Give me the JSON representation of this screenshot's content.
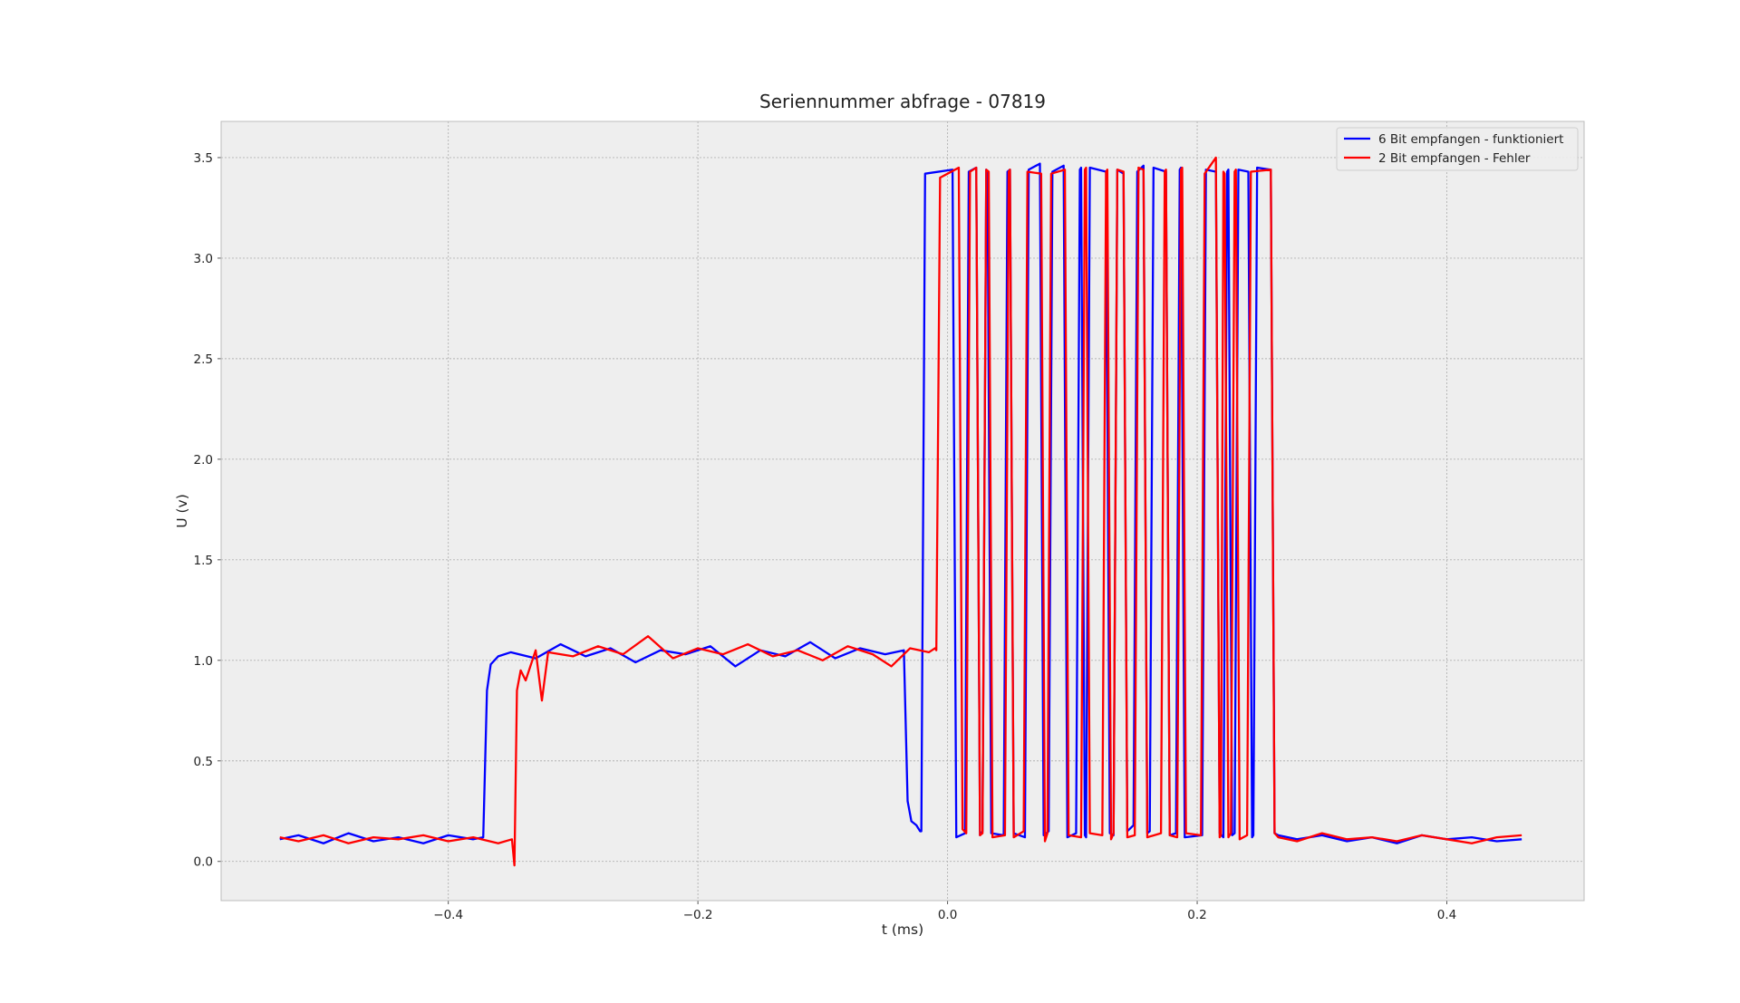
{
  "chart_data": {
    "type": "line",
    "title": "Seriennummer abfrage - 07819",
    "xlabel": "t (ms)",
    "ylabel": "U (v)",
    "xlim": [
      -0.582,
      0.51
    ],
    "ylim": [
      -0.195,
      3.68
    ],
    "xticks": [
      {
        "value": -0.4,
        "label": "−0.4"
      },
      {
        "value": -0.2,
        "label": "−0.2"
      },
      {
        "value": 0,
        "label": "0.0"
      },
      0.2,
      0.4
    ],
    "yticks": [
      {
        "value": 0,
        "label": "0.0"
      },
      0.5,
      {
        "value": 1,
        "label": "1.0"
      },
      1.5,
      {
        "value": 2,
        "label": "2.0"
      },
      2.5,
      {
        "value": 3,
        "label": "3.0"
      },
      3.5
    ],
    "grid": true,
    "legend": "upper right",
    "series": [
      {
        "name": "6 Bit empfangen - funktioniert",
        "color": "#0000ff",
        "x": [
          -0.535,
          -0.52,
          -0.5,
          -0.48,
          -0.46,
          -0.44,
          -0.42,
          -0.4,
          -0.38,
          -0.372,
          -0.369,
          -0.366,
          -0.36,
          -0.35,
          -0.33,
          -0.31,
          -0.29,
          -0.27,
          -0.25,
          -0.23,
          -0.21,
          -0.19,
          -0.17,
          -0.15,
          -0.13,
          -0.11,
          -0.09,
          -0.07,
          -0.05,
          -0.035,
          -0.032,
          -0.029,
          -0.025,
          -0.022,
          -0.021,
          -0.018,
          0.004,
          0.007,
          0.014,
          0.017,
          0.023,
          0.026,
          0.028,
          0.031,
          0.032,
          0.035,
          0.045,
          0.048,
          0.05,
          0.053,
          0.062,
          0.065,
          0.074,
          0.077,
          0.081,
          0.084,
          0.093,
          0.096,
          0.103,
          0.106,
          0.107,
          0.11,
          0.111,
          0.114,
          0.127,
          0.13,
          0.133,
          0.136,
          0.141,
          0.144,
          0.149,
          0.152,
          0.157,
          0.16,
          0.162,
          0.165,
          0.175,
          0.178,
          0.183,
          0.186,
          0.187,
          0.19,
          0.204,
          0.207,
          0.215,
          0.218,
          0.221,
          0.224,
          0.225,
          0.228,
          0.23,
          0.233,
          0.241,
          0.244,
          0.245,
          0.248,
          0.259,
          0.262,
          0.265,
          0.28,
          0.3,
          0.32,
          0.34,
          0.36,
          0.38,
          0.4,
          0.42,
          0.44,
          0.46
        ],
        "values": [
          0.11,
          0.13,
          0.09,
          0.14,
          0.1,
          0.12,
          0.09,
          0.13,
          0.11,
          0.12,
          0.85,
          0.98,
          1.02,
          1.04,
          1.01,
          1.08,
          1.02,
          1.06,
          0.99,
          1.05,
          1.03,
          1.07,
          0.97,
          1.05,
          1.02,
          1.09,
          1.01,
          1.06,
          1.03,
          1.05,
          0.3,
          0.2,
          0.18,
          0.15,
          0.15,
          3.42,
          3.44,
          0.12,
          0.14,
          3.43,
          3.45,
          0.13,
          0.15,
          3.44,
          3.42,
          0.14,
          0.13,
          3.43,
          3.44,
          0.14,
          0.12,
          3.44,
          3.47,
          0.13,
          0.15,
          3.43,
          3.46,
          0.12,
          0.14,
          3.44,
          3.45,
          0.13,
          0.12,
          3.45,
          3.43,
          0.14,
          0.13,
          3.44,
          3.42,
          0.15,
          0.18,
          3.43,
          3.46,
          0.14,
          0.15,
          3.45,
          3.43,
          0.13,
          0.14,
          3.44,
          3.45,
          0.12,
          0.13,
          3.44,
          3.43,
          0.14,
          0.12,
          3.43,
          3.44,
          0.13,
          0.14,
          3.44,
          3.43,
          0.12,
          0.13,
          3.45,
          3.44,
          0.14,
          0.13,
          0.11,
          0.13,
          0.1,
          0.12,
          0.09,
          0.13,
          0.11,
          0.12,
          0.1,
          0.11
        ]
      },
      {
        "name": "2 Bit empfangen - Fehler",
        "color": "#ff0000",
        "x": [
          -0.535,
          -0.52,
          -0.5,
          -0.48,
          -0.46,
          -0.44,
          -0.42,
          -0.4,
          -0.38,
          -0.36,
          -0.349,
          -0.347,
          -0.345,
          -0.342,
          -0.338,
          -0.33,
          -0.325,
          -0.32,
          -0.3,
          -0.28,
          -0.26,
          -0.24,
          -0.22,
          -0.2,
          -0.18,
          -0.16,
          -0.14,
          -0.12,
          -0.1,
          -0.08,
          -0.06,
          -0.045,
          -0.03,
          -0.015,
          -0.01,
          -0.009,
          -0.006,
          0.009,
          0.012,
          0.015,
          0.018,
          0.023,
          0.026,
          0.028,
          0.031,
          0.033,
          0.036,
          0.046,
          0.049,
          0.05,
          0.053,
          0.061,
          0.064,
          0.075,
          0.078,
          0.08,
          0.083,
          0.094,
          0.097,
          0.107,
          0.11,
          0.111,
          0.114,
          0.124,
          0.127,
          0.128,
          0.131,
          0.133,
          0.136,
          0.141,
          0.144,
          0.15,
          0.153,
          0.157,
          0.16,
          0.171,
          0.174,
          0.175,
          0.178,
          0.184,
          0.187,
          0.188,
          0.191,
          0.203,
          0.206,
          0.215,
          0.218,
          0.219,
          0.221,
          0.222,
          0.225,
          0.227,
          0.23,
          0.231,
          0.234,
          0.24,
          0.243,
          0.259,
          0.262,
          0.265,
          0.28,
          0.3,
          0.32,
          0.34,
          0.36,
          0.38,
          0.4,
          0.42,
          0.44,
          0.46
        ],
        "values": [
          0.12,
          0.1,
          0.13,
          0.09,
          0.12,
          0.11,
          0.13,
          0.1,
          0.12,
          0.09,
          0.11,
          -0.02,
          0.85,
          0.95,
          0.9,
          1.05,
          0.8,
          1.04,
          1.02,
          1.07,
          1.03,
          1.12,
          1.01,
          1.06,
          1.03,
          1.08,
          1.02,
          1.05,
          1.0,
          1.07,
          1.03,
          0.97,
          1.06,
          1.04,
          1.06,
          1.05,
          3.4,
          3.45,
          0.16,
          0.14,
          3.43,
          3.45,
          0.13,
          0.14,
          3.44,
          3.43,
          0.12,
          0.13,
          3.43,
          3.44,
          0.12,
          0.15,
          3.43,
          3.42,
          0.1,
          0.14,
          3.42,
          3.44,
          0.13,
          0.12,
          3.44,
          3.45,
          0.14,
          0.13,
          3.43,
          3.44,
          0.11,
          0.14,
          3.44,
          3.43,
          0.12,
          0.13,
          3.45,
          3.44,
          0.12,
          0.14,
          3.43,
          3.44,
          0.13,
          0.12,
          3.44,
          3.45,
          0.14,
          0.13,
          3.42,
          3.5,
          0.12,
          0.13,
          3.43,
          3.42,
          0.12,
          0.14,
          3.43,
          3.44,
          0.11,
          0.13,
          3.43,
          3.44,
          0.14,
          0.12,
          0.1,
          0.14,
          0.11,
          0.12,
          0.1,
          0.13,
          0.11,
          0.09,
          0.12,
          0.13
        ]
      }
    ]
  }
}
